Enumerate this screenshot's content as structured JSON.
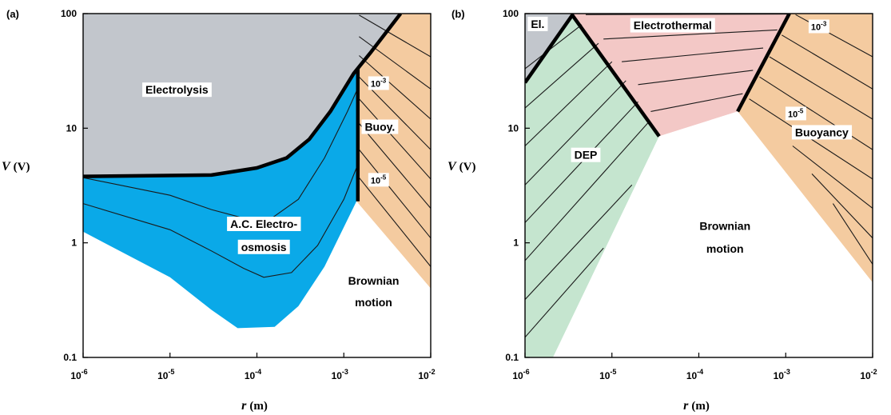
{
  "chart_data": [
    {
      "type": "area",
      "panel_label": "(a)",
      "xlabel_var": "r",
      "xlabel_unit": "(m)",
      "ylabel_var": "V",
      "ylabel_unit": "(V)",
      "x_scale": "log",
      "y_scale": "log",
      "xlim": [
        1e-06,
        0.01
      ],
      "ylim": [
        0.1,
        100
      ],
      "x_ticks": [
        {
          "value": 1e-06,
          "base": "10",
          "exp": "-6"
        },
        {
          "value": 1e-05,
          "base": "10",
          "exp": "-5"
        },
        {
          "value": 0.0001,
          "base": "10",
          "exp": "-4"
        },
        {
          "value": 0.001,
          "base": "10",
          "exp": "-3"
        },
        {
          "value": 0.01,
          "base": "10",
          "exp": "-2"
        }
      ],
      "y_ticks": [
        {
          "value": 0.1,
          "label": "0.1"
        },
        {
          "value": 1,
          "label": "1"
        },
        {
          "value": 10,
          "label": "10"
        },
        {
          "value": 100,
          "label": "100"
        }
      ],
      "grid": false,
      "regions": [
        {
          "name": "Electrolysis",
          "color": "#c2c6cc",
          "points": [
            [
              1e-06,
              100
            ],
            [
              0.0045,
              100
            ],
            [
              0.002,
              45
            ],
            [
              0.0013,
              30
            ],
            [
              0.0007,
              14
            ],
            [
              0.0004,
              8
            ],
            [
              0.00022,
              5.5
            ],
            [
              0.0001,
              4.5
            ],
            [
              3e-05,
              3.9
            ],
            [
              1e-06,
              3.8
            ]
          ]
        },
        {
          "name": "Buoy.",
          "color": "#f4cba0",
          "points": [
            [
              0.0045,
              100
            ],
            [
              0.01,
              100
            ],
            [
              0.01,
              0.4
            ],
            [
              0.0014,
              2.3
            ],
            [
              0.0014,
              33
            ],
            [
              0.002,
              45
            ]
          ]
        },
        {
          "name": "Brownian motion",
          "color": "#ffffff",
          "points": [
            [
              1e-06,
              1.25
            ],
            [
              1e-05,
              0.5
            ],
            [
              3e-05,
              0.26
            ],
            [
              6e-05,
              0.18
            ],
            [
              0.00016,
              0.185
            ],
            [
              0.0003,
              0.28
            ],
            [
              0.0006,
              0.62
            ],
            [
              0.0014,
              2.3
            ],
            [
              0.01,
              0.4
            ],
            [
              0.01,
              0.1
            ],
            [
              1e-06,
              0.1
            ]
          ]
        },
        {
          "name": "A.C. Electro-osmosis",
          "color": "#0aa9e8",
          "points": [
            [
              1e-06,
              3.8
            ],
            [
              3e-05,
              3.9
            ],
            [
              0.0001,
              4.5
            ],
            [
              0.00022,
              5.5
            ],
            [
              0.0004,
              8
            ],
            [
              0.0007,
              14
            ],
            [
              0.0013,
              30
            ],
            [
              0.0014,
              33
            ],
            [
              0.0014,
              2.3
            ],
            [
              0.0006,
              0.62
            ],
            [
              0.0003,
              0.28
            ],
            [
              0.00016,
              0.185
            ],
            [
              6e-05,
              0.18
            ],
            [
              3e-05,
              0.26
            ],
            [
              1e-05,
              0.5
            ],
            [
              1e-06,
              1.25
            ]
          ]
        }
      ],
      "boundaries": [
        {
          "points": [
            [
              1e-06,
              3.8
            ],
            [
              3e-05,
              3.9
            ],
            [
              0.0001,
              4.5
            ],
            [
              0.00022,
              5.5
            ],
            [
              0.0004,
              8
            ],
            [
              0.0007,
              14
            ],
            [
              0.0013,
              30
            ],
            [
              0.002,
              45
            ],
            [
              0.0045,
              100
            ]
          ]
        },
        {
          "points": [
            [
              0.00145,
              33
            ],
            [
              0.00145,
              2.3
            ]
          ]
        }
      ],
      "contours": [
        {
          "points": [
            [
              1e-06,
              3.7
            ],
            [
              1e-05,
              2.6
            ],
            [
              3e-05,
              1.95
            ],
            [
              8e-05,
              1.6
            ],
            [
              0.00015,
              1.65
            ],
            [
              0.0003,
              2.4
            ],
            [
              0.0006,
              5.5
            ],
            [
              0.0011,
              14
            ],
            [
              0.0014,
              21
            ]
          ]
        },
        {
          "points": [
            [
              1e-06,
              2.2
            ],
            [
              1e-05,
              1.3
            ],
            [
              3e-05,
              0.85
            ],
            [
              7e-05,
              0.6
            ],
            [
              0.00012,
              0.5
            ],
            [
              0.00025,
              0.55
            ],
            [
              0.0005,
              0.95
            ],
            [
              0.001,
              2.4
            ],
            [
              0.0014,
              4.5
            ]
          ]
        },
        {
          "points": [
            [
              0.0015,
              97
            ],
            [
              0.01,
              42
            ]
          ]
        },
        {
          "points": [
            [
              0.0015,
              63
            ],
            [
              0.01,
              22
            ]
          ]
        },
        {
          "points": [
            [
              0.0015,
              43
            ],
            [
              0.01,
              12
            ]
          ]
        },
        {
          "points": [
            [
              0.0015,
              28
            ],
            [
              0.01,
              6.5
            ]
          ]
        },
        {
          "points": [
            [
              0.0015,
              18
            ],
            [
              0.01,
              3.6
            ]
          ]
        },
        {
          "points": [
            [
              0.0015,
              11
            ],
            [
              0.01,
              2
            ]
          ]
        },
        {
          "points": [
            [
              0.0015,
              6.5
            ],
            [
              0.01,
              1.1
            ]
          ]
        },
        {
          "points": [
            [
              0.0015,
              3.7
            ],
            [
              0.01,
              0.62
            ]
          ]
        }
      ],
      "labels": [
        {
          "text": "Electrolysis",
          "x": 1.2e-05,
          "y": 20
        },
        {
          "text": "A.C. Electro-",
          "x": 0.00012,
          "y": 1.35
        },
        {
          "text": "osmosis",
          "x": 0.00012,
          "y": 0.85
        },
        {
          "text": "Brownian",
          "x": 0.0022,
          "y": 0.43
        },
        {
          "text": "motion",
          "x": 0.0022,
          "y": 0.28
        },
        {
          "text": "Buoy.",
          "x": 0.0026,
          "y": 9.5
        }
      ],
      "contour_labels": [
        {
          "base": "10",
          "exp": "-3",
          "x": 0.0025,
          "y": 23
        },
        {
          "base": "10",
          "exp": "-5",
          "x": 0.0025,
          "y": 3.3
        }
      ]
    },
    {
      "type": "area",
      "panel_label": "(b)",
      "xlabel_var": "r",
      "xlabel_unit": "(m)",
      "ylabel_var": "V",
      "ylabel_unit": "(V)",
      "x_scale": "log",
      "y_scale": "log",
      "xlim": [
        1e-06,
        0.01
      ],
      "ylim": [
        0.1,
        100
      ],
      "x_ticks": [
        {
          "value": 1e-06,
          "base": "10",
          "exp": "-6"
        },
        {
          "value": 1e-05,
          "base": "10",
          "exp": "-5"
        },
        {
          "value": 0.0001,
          "base": "10",
          "exp": "-4"
        },
        {
          "value": 0.001,
          "base": "10",
          "exp": "-3"
        },
        {
          "value": 0.01,
          "base": "10",
          "exp": "-2"
        }
      ],
      "y_ticks": [
        {
          "value": 0.1,
          "label": "0.1"
        },
        {
          "value": 1,
          "label": "1"
        },
        {
          "value": 10,
          "label": "10"
        },
        {
          "value": 100,
          "label": "100"
        }
      ],
      "grid": false,
      "regions": [
        {
          "name": "El.",
          "color": "#c2c6cc",
          "points": [
            [
              1e-06,
              100
            ],
            [
              3.5e-06,
              100
            ],
            [
              3.5e-06,
              97
            ],
            [
              1e-06,
              25
            ]
          ]
        },
        {
          "name": "Electrothermal",
          "color": "#f3c8c6",
          "points": [
            [
              3.5e-06,
              100
            ],
            [
              0.0011,
              100
            ],
            [
              0.00028,
              14
            ],
            [
              3.5e-05,
              8.5
            ],
            [
              3.5e-06,
              97
            ]
          ]
        },
        {
          "name": "Buoyancy",
          "color": "#f4cba0",
          "points": [
            [
              0.0011,
              100
            ],
            [
              0.01,
              100
            ],
            [
              0.01,
              0.45
            ],
            [
              0.00028,
              14
            ]
          ]
        },
        {
          "name": "DEP",
          "color": "#c5e5cf",
          "points": [
            [
              1e-06,
              25
            ],
            [
              3.5e-06,
              97
            ],
            [
              3.5e-05,
              8.5
            ],
            [
              2.1e-06,
              0.1
            ],
            [
              1e-06,
              0.1
            ]
          ]
        },
        {
          "name": "Brownian motion",
          "color": "#ffffff",
          "points": [
            [
              3.5e-05,
              8.5
            ],
            [
              0.00028,
              14
            ],
            [
              0.01,
              0.45
            ],
            [
              0.01,
              0.1
            ],
            [
              2.1e-06,
              0.1
            ]
          ]
        }
      ],
      "boundaries": [
        {
          "points": [
            [
              1e-06,
              25
            ],
            [
              3.5e-06,
              97
            ],
            [
              3.5e-05,
              8.5
            ]
          ]
        },
        {
          "points": [
            [
              0.00028,
              14
            ],
            [
              0.0011,
              100
            ]
          ]
        }
      ],
      "contours": [
        {
          "points": [
            [
              1e-06,
              33
            ],
            [
              4.5e-06,
              80
            ]
          ]
        },
        {
          "points": [
            [
              1e-06,
              15
            ],
            [
              7e-06,
              55
            ]
          ]
        },
        {
          "points": [
            [
              1e-06,
              7
            ],
            [
              1e-05,
              38
            ]
          ]
        },
        {
          "points": [
            [
              1e-06,
              3.2
            ],
            [
              1.45e-05,
              26
            ]
          ]
        },
        {
          "points": [
            [
              1e-06,
              1.5
            ],
            [
              2e-05,
              17
            ]
          ]
        },
        {
          "points": [
            [
              1e-06,
              0.7
            ],
            [
              2.7e-05,
              11.5
            ]
          ]
        },
        {
          "points": [
            [
              1e-06,
              0.32
            ],
            [
              1.7e-05,
              3.2
            ]
          ]
        },
        {
          "points": [
            [
              1e-06,
              0.15
            ],
            [
              8e-06,
              0.9
            ]
          ]
        },
        {
          "points": [
            [
              5e-06,
              98
            ],
            [
              0.0011,
              99
            ]
          ]
        },
        {
          "points": [
            [
              8e-06,
              60
            ],
            [
              0.0008,
              72
            ]
          ]
        },
        {
          "points": [
            [
              1.3e-05,
              38
            ],
            [
              0.00055,
              50
            ]
          ]
        },
        {
          "points": [
            [
              2e-05,
              24
            ],
            [
              0.00042,
              32
            ]
          ]
        },
        {
          "points": [
            [
              2.8e-05,
              14
            ],
            [
              0.00032,
              20
            ]
          ]
        },
        {
          "points": [
            [
              0.0013,
              98
            ],
            [
              0.01,
              42
            ]
          ]
        },
        {
          "points": [
            [
              0.0009,
              65
            ],
            [
              0.01,
              22
            ]
          ]
        },
        {
          "points": [
            [
              0.00065,
              42
            ],
            [
              0.01,
              12
            ]
          ]
        },
        {
          "points": [
            [
              0.0005,
              28
            ],
            [
              0.01,
              6.5
            ]
          ]
        },
        {
          "points": [
            [
              0.00038,
              18
            ],
            [
              0.01,
              3.6
            ]
          ]
        },
        {
          "points": [
            [
              0.0012,
              7
            ],
            [
              0.01,
              2
            ]
          ]
        },
        {
          "points": [
            [
              0.002,
              4
            ],
            [
              0.01,
              1.1
            ]
          ]
        },
        {
          "points": [
            [
              0.0035,
              2.2
            ],
            [
              0.01,
              0.65
            ]
          ]
        }
      ],
      "labels": [
        {
          "text": "El.",
          "x": 1.4e-06,
          "y": 75
        },
        {
          "text": "Electrothermal",
          "x": 5e-05,
          "y": 73
        },
        {
          "text": "DEP",
          "x": 5e-06,
          "y": 5.4
        },
        {
          "text": "Brownian",
          "x": 0.0002,
          "y": 1.3
        },
        {
          "text": "motion",
          "x": 0.0002,
          "y": 0.82
        },
        {
          "text": "Buoyancy",
          "x": 0.0026,
          "y": 8.5
        }
      ],
      "contour_labels": [
        {
          "base": "10",
          "exp": "-3",
          "x": 0.0024,
          "y": 72
        },
        {
          "base": "10",
          "exp": "-5",
          "x": 0.0013,
          "y": 12.5
        }
      ]
    }
  ]
}
